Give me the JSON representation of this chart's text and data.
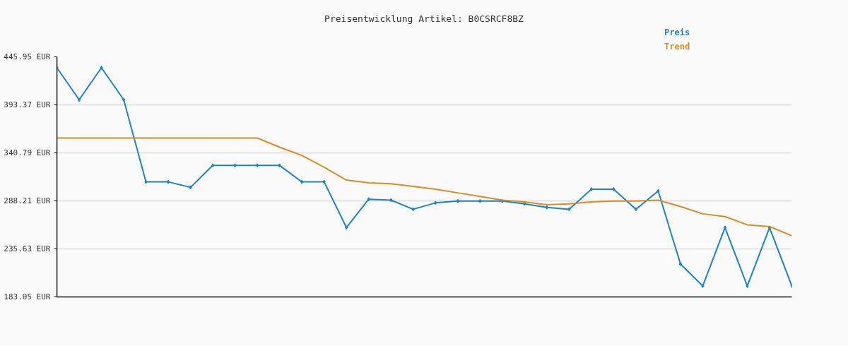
{
  "chart_data": {
    "type": "line",
    "title": "Preisentwicklung Artikel: B0CSRCF8BZ",
    "categories": [
      null,
      null,
      null,
      null,
      null,
      null,
      null,
      null,
      null,
      null,
      null,
      null,
      null,
      null,
      null,
      null,
      null,
      null,
      null,
      null,
      null,
      null,
      null,
      null,
      null,
      null,
      null,
      null,
      null,
      null,
      null,
      null,
      null,
      null
    ],
    "series": [
      {
        "name": "Preis",
        "color": "#1a84cc",
        "marker": "diamond",
        "values": [
          434,
          399,
          434,
          399,
          309,
          309,
          303,
          327,
          327,
          327,
          327,
          309,
          309,
          259,
          290,
          289,
          279,
          286,
          288,
          288,
          288,
          285,
          281,
          279,
          301,
          301,
          279,
          299,
          219,
          195,
          259,
          195,
          259,
          195
        ]
      },
      {
        "name": "Trend",
        "color": "#e0891e",
        "marker": "none",
        "values": [
          357,
          357,
          357,
          357,
          357,
          357,
          357,
          357,
          357,
          357,
          347,
          338,
          325,
          311,
          308,
          307,
          304,
          301,
          297,
          293,
          289,
          287,
          284,
          285,
          287,
          288,
          288,
          289,
          282,
          274,
          271,
          262,
          260,
          250
        ]
      }
    ],
    "ylim": [
      183.05,
      445.95
    ],
    "yticks": [
      {
        "value": 183.05,
        "label": "183.05 EUR"
      },
      {
        "value": 235.63,
        "label": "235.63 EUR"
      },
      {
        "value": 288.21,
        "label": "288.21 EUR"
      },
      {
        "value": 340.79,
        "label": "340.79 EUR"
      },
      {
        "value": 393.37,
        "label": "393.37 EUR"
      },
      {
        "value": 445.95,
        "label": "445.95 EUR"
      }
    ],
    "grid": "y",
    "tick_labels": "y",
    "line_style": "solid"
  }
}
